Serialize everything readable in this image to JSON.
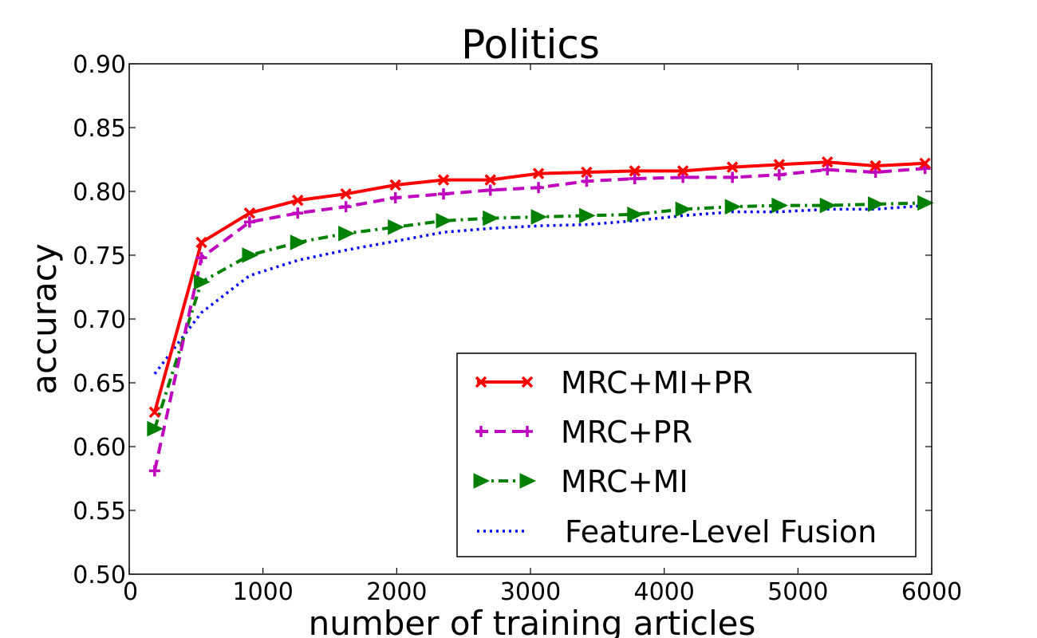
{
  "chart_data": {
    "type": "line",
    "title": "Politics",
    "xlabel": "number of training articles",
    "ylabel": "accuracy",
    "xlim": [
      0,
      6000
    ],
    "ylim": [
      0.5,
      0.9
    ],
    "xticks": [
      0,
      1000,
      2000,
      3000,
      4000,
      5000,
      6000
    ],
    "xtick_labels": [
      "0",
      "1000",
      "2000",
      "3000",
      "4000",
      "5000",
      "6000"
    ],
    "yticks": [
      0.5,
      0.55,
      0.6,
      0.65,
      0.7,
      0.75,
      0.8,
      0.85,
      0.9
    ],
    "ytick_labels": [
      "0.50",
      "0.55",
      "0.60",
      "0.65",
      "0.70",
      "0.75",
      "0.80",
      "0.85",
      "0.90"
    ],
    "grid": false,
    "legend_position": "lower-right",
    "x": [
      190,
      540,
      900,
      1260,
      1620,
      1990,
      2350,
      2700,
      3060,
      3420,
      3780,
      4140,
      4510,
      4860,
      5220,
      5580,
      5950
    ],
    "series": [
      {
        "name": "MRC+MI+PR",
        "color": "#ff0000",
        "marker": "x",
        "line_style": "solid",
        "values": [
          0.627,
          0.76,
          0.783,
          0.793,
          0.798,
          0.805,
          0.809,
          0.809,
          0.814,
          0.815,
          0.816,
          0.816,
          0.819,
          0.821,
          0.823,
          0.82,
          0.822
        ]
      },
      {
        "name": "MRC+PR",
        "color": "#bf00bf",
        "marker": "plus",
        "line_style": "dashed",
        "values": [
          0.581,
          0.748,
          0.776,
          0.783,
          0.788,
          0.795,
          0.798,
          0.801,
          0.803,
          0.808,
          0.81,
          0.811,
          0.811,
          0.813,
          0.817,
          0.815,
          0.818
        ]
      },
      {
        "name": "MRC+MI",
        "color": "#008000",
        "marker": "triangle-right",
        "line_style": "dash-dot",
        "values": [
          0.614,
          0.729,
          0.75,
          0.76,
          0.767,
          0.772,
          0.777,
          0.779,
          0.78,
          0.781,
          0.782,
          0.786,
          0.788,
          0.789,
          0.789,
          0.79,
          0.791
        ]
      },
      {
        "name": "Feature-Level Fusion",
        "color": "#0000ff",
        "marker": "none",
        "line_style": "dotted",
        "values": [
          0.657,
          0.705,
          0.734,
          0.746,
          0.754,
          0.761,
          0.768,
          0.771,
          0.773,
          0.774,
          0.777,
          0.781,
          0.784,
          0.784,
          0.786,
          0.786,
          0.789
        ]
      }
    ]
  }
}
